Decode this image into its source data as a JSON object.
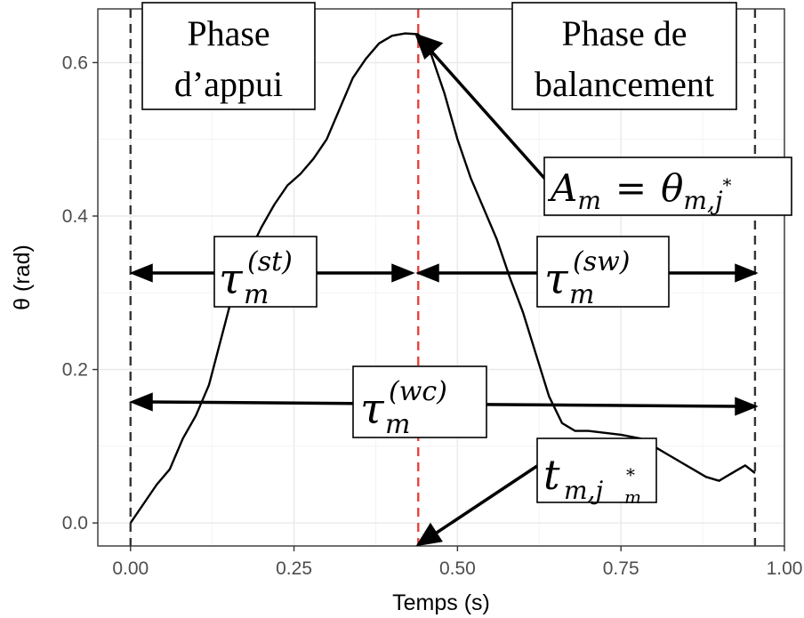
{
  "chart_data": {
    "type": "line",
    "xlabel": "Temps (s)",
    "ylabel": "θ (rad)",
    "xlim": [
      -0.05,
      1.0
    ],
    "ylim": [
      -0.03,
      0.67
    ],
    "x_ticks": [
      0.0,
      0.25,
      0.5,
      0.75,
      1.0
    ],
    "x_tick_labels": [
      "0.00",
      "0.25",
      "0.50",
      "0.75",
      "1.00"
    ],
    "y_ticks": [
      0.0,
      0.2,
      0.4,
      0.6
    ],
    "y_tick_labels": [
      "0.0",
      "0.2",
      "0.4",
      "0.6"
    ],
    "grid": true,
    "series": [
      {
        "color": "#000000",
        "x": [
          0.0,
          0.02,
          0.04,
          0.06,
          0.08,
          0.1,
          0.12,
          0.14,
          0.16,
          0.18,
          0.2,
          0.22,
          0.24,
          0.26,
          0.28,
          0.3,
          0.32,
          0.34,
          0.36,
          0.38,
          0.4,
          0.42,
          0.44,
          0.46,
          0.48,
          0.5,
          0.52,
          0.54,
          0.56,
          0.58,
          0.6,
          0.62,
          0.64,
          0.66,
          0.68,
          0.7,
          0.72,
          0.75,
          0.78,
          0.8,
          0.82,
          0.84,
          0.86,
          0.88,
          0.9,
          0.91,
          0.93,
          0.94,
          0.955
        ],
        "y": [
          0.0,
          0.025,
          0.05,
          0.07,
          0.11,
          0.14,
          0.18,
          0.245,
          0.31,
          0.35,
          0.385,
          0.415,
          0.44,
          0.455,
          0.475,
          0.5,
          0.54,
          0.58,
          0.605,
          0.625,
          0.635,
          0.638,
          0.637,
          0.61,
          0.56,
          0.5,
          0.45,
          0.41,
          0.37,
          0.32,
          0.275,
          0.22,
          0.165,
          0.13,
          0.12,
          0.12,
          0.118,
          0.115,
          0.11,
          0.1,
          0.09,
          0.08,
          0.07,
          0.06,
          0.055,
          0.06,
          0.07,
          0.075,
          0.065
        ]
      }
    ],
    "vlines": [
      {
        "x": 0.0,
        "color": "#333333",
        "style": "dashed"
      },
      {
        "x": 0.44,
        "color": "#e8413c",
        "style": "dashed"
      },
      {
        "x": 0.955,
        "color": "#333333",
        "style": "dashed"
      }
    ],
    "annotations": {
      "phase_stance": [
        "Phase",
        "d’appui"
      ],
      "phase_swing": [
        "Phase de",
        "balancement"
      ],
      "amplitude": {
        "lhs": "A",
        "lhs_sub": "m",
        "eq": "=",
        "rhs": "θ",
        "rhs_sub": "m,j",
        "rhs_sup": "*"
      },
      "tau_st": {
        "sym": "τ",
        "sup": "(st)",
        "sub": "m"
      },
      "tau_sw": {
        "sym": "τ",
        "sup": "(sw)",
        "sub": "m"
      },
      "tau_wc": {
        "sym": "τ",
        "sup": "(wc)",
        "sub": "m"
      },
      "time": {
        "sym": "t",
        "sub": "m,j",
        "sub_sup": "*",
        "sub_sub": "m"
      }
    }
  }
}
